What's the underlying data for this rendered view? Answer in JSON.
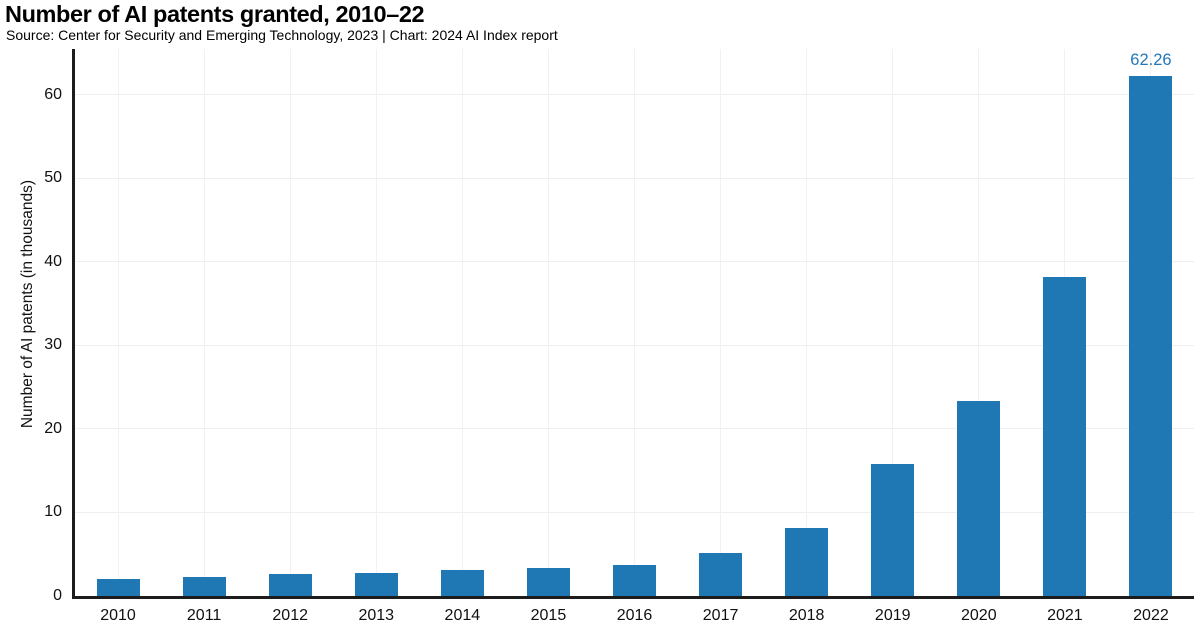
{
  "header": {
    "title": "Number of AI patents granted, 2010–22",
    "subtitle": "Source: Center for Security and Emerging Technology, 2023 | Chart: 2024 AI Index report"
  },
  "chart_data": {
    "type": "bar",
    "title": "Number of AI patents granted, 2010–22",
    "subtitle": "Source: Center for Security and Emerging Technology, 2023 | Chart: 2024 AI Index report",
    "categories": [
      "2010",
      "2011",
      "2012",
      "2013",
      "2014",
      "2015",
      "2016",
      "2017",
      "2018",
      "2019",
      "2020",
      "2021",
      "2022"
    ],
    "values": [
      2.0,
      2.3,
      2.6,
      2.7,
      3.1,
      3.4,
      3.7,
      5.1,
      8.1,
      15.8,
      23.4,
      38.26,
      62.26
    ],
    "xlabel": "",
    "ylabel": "Number of AI patents (in thousands)",
    "ylim": [
      0,
      65.5
    ],
    "yticks": [
      0,
      10,
      20,
      30,
      40,
      50,
      60
    ],
    "grid": "light horizontal and vertical gridlines",
    "legend": "none",
    "bar_color": "#1f77b4",
    "grid_color": "#efefef",
    "axis_color": "#1c1c1c",
    "annotations": [
      {
        "category": "2022",
        "text": "62.26",
        "color": "#2377b8"
      }
    ]
  }
}
